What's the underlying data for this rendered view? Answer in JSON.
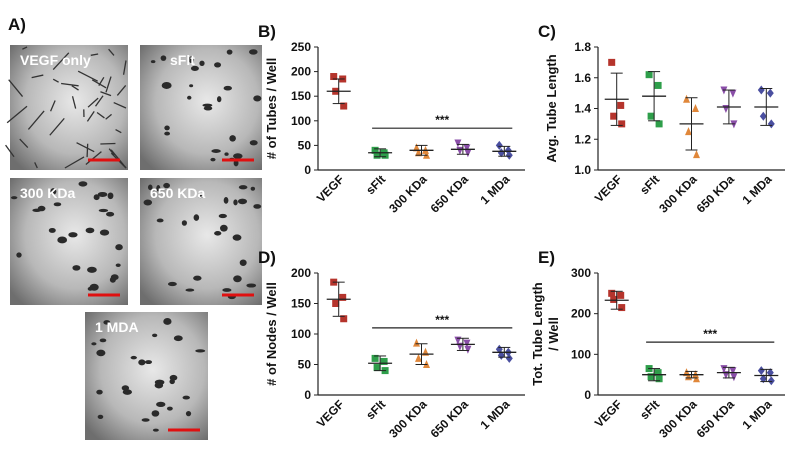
{
  "images": {
    "panel": "A)",
    "items": [
      {
        "label": "VEGF only"
      },
      {
        "label": "sFlt"
      },
      {
        "label": "300 KDa"
      },
      {
        "label": "650 KDa"
      },
      {
        "label": "1 MDA"
      }
    ]
  },
  "chart_data": [
    {
      "type": "dotplot",
      "panel": "B)",
      "ylabel": "# of Tubes / Well",
      "categories": [
        "VEGF",
        "sFlt",
        "300 KDa",
        "650 KDa",
        "1 MDa"
      ],
      "markers": [
        "square",
        "square",
        "triangle",
        "triangle-down",
        "diamond"
      ],
      "groups": [
        {
          "color": "#b5342c",
          "values": [
            190,
            185,
            160,
            130
          ],
          "mean": 160,
          "sd": 25
        },
        {
          "color": "#2e9e4a",
          "values": [
            40,
            35,
            30,
            30
          ],
          "mean": 35,
          "sd": 8
        },
        {
          "color": "#e0873a",
          "values": [
            45,
            40,
            35,
            30
          ],
          "mean": 40,
          "sd": 10
        },
        {
          "color": "#8a4ea8",
          "values": [
            55,
            45,
            40,
            35
          ],
          "mean": 42,
          "sd": 10
        },
        {
          "color": "#4a4fa0",
          "values": [
            50,
            40,
            35,
            30
          ],
          "mean": 38,
          "sd": 10
        }
      ],
      "ylim": [
        0,
        250
      ],
      "yticks": [
        0,
        50,
        100,
        150,
        200,
        250
      ],
      "annotation": {
        "text": "***",
        "y": 85
      }
    },
    {
      "type": "dotplot",
      "panel": "C)",
      "ylabel": "Avg. Tube Length",
      "categories": [
        "VEGF",
        "sFlt",
        "300 KDa",
        "650 KDa",
        "1 MDa"
      ],
      "markers": [
        "square",
        "square",
        "triangle",
        "triangle-down",
        "diamond"
      ],
      "groups": [
        {
          "color": "#b5342c",
          "values": [
            1.7,
            1.42,
            1.35,
            1.3
          ],
          "mean": 1.46,
          "sd": 0.17
        },
        {
          "color": "#2e9e4a",
          "values": [
            1.62,
            1.55,
            1.35,
            1.3
          ],
          "mean": 1.48,
          "sd": 0.16
        },
        {
          "color": "#e0873a",
          "values": [
            1.46,
            1.4,
            1.25,
            1.1
          ],
          "mean": 1.3,
          "sd": 0.17
        },
        {
          "color": "#8a4ea8",
          "values": [
            1.52,
            1.5,
            1.4,
            1.3
          ],
          "mean": 1.41,
          "sd": 0.11
        },
        {
          "color": "#4a4fa0",
          "values": [
            1.52,
            1.5,
            1.35,
            1.3
          ],
          "mean": 1.41,
          "sd": 0.12
        }
      ],
      "ylim": [
        1,
        1.8
      ],
      "yticks": [
        {
          "value": 1,
          "label": "1.0"
        },
        1.2,
        1.4,
        1.6,
        1.8
      ]
    },
    {
      "type": "dotplot",
      "panel": "D)",
      "ylabel": "# of Nodes / Well",
      "categories": [
        "VEGF",
        "sFlt",
        "300 KDa",
        "650 KDa",
        "1 MDa"
      ],
      "markers": [
        "square",
        "square",
        "triangle",
        "triangle-down",
        "diamond"
      ],
      "groups": [
        {
          "color": "#b5342c",
          "values": [
            185,
            160,
            150,
            125
          ],
          "mean": 157,
          "sd": 28
        },
        {
          "color": "#2e9e4a",
          "values": [
            60,
            55,
            45,
            40
          ],
          "mean": 52,
          "sd": 12
        },
        {
          "color": "#e0873a",
          "values": [
            85,
            70,
            60,
            50
          ],
          "mean": 67,
          "sd": 17
        },
        {
          "color": "#8a4ea8",
          "values": [
            90,
            85,
            80,
            75
          ],
          "mean": 83,
          "sd": 10
        },
        {
          "color": "#4a4fa0",
          "values": [
            75,
            70,
            65,
            60
          ],
          "mean": 70,
          "sd": 8
        }
      ],
      "ylim": [
        0,
        200
      ],
      "yticks": [
        0,
        50,
        100,
        150,
        200
      ],
      "annotation": {
        "text": "***",
        "y": 110
      }
    },
    {
      "type": "dotplot",
      "panel": "E)",
      "ylabel": [
        "Tot. Tube Length",
        "/ Well"
      ],
      "categories": [
        "VEGF",
        "sFlt",
        "300 KDa",
        "650 KDa",
        "1 MDa"
      ],
      "markers": [
        "square",
        "square",
        "triangle",
        "triangle-down",
        "diamond"
      ],
      "groups": [
        {
          "color": "#b5342c",
          "values": [
            250,
            245,
            235,
            215
          ],
          "mean": 233,
          "sd": 22
        },
        {
          "color": "#2e9e4a",
          "values": [
            65,
            55,
            45,
            40
          ],
          "mean": 50,
          "sd": 15
        },
        {
          "color": "#e0873a",
          "values": [
            55,
            50,
            45,
            40
          ],
          "mean": 50,
          "sd": 8
        },
        {
          "color": "#8a4ea8",
          "values": [
            65,
            60,
            50,
            45
          ],
          "mean": 55,
          "sd": 13
        },
        {
          "color": "#4a4fa0",
          "values": [
            60,
            55,
            40,
            35
          ],
          "mean": 48,
          "sd": 15
        }
      ],
      "ylim": [
        0,
        300
      ],
      "yticks": [
        0,
        100,
        200,
        300
      ],
      "annotation": {
        "text": "***",
        "y": 130
      }
    }
  ]
}
